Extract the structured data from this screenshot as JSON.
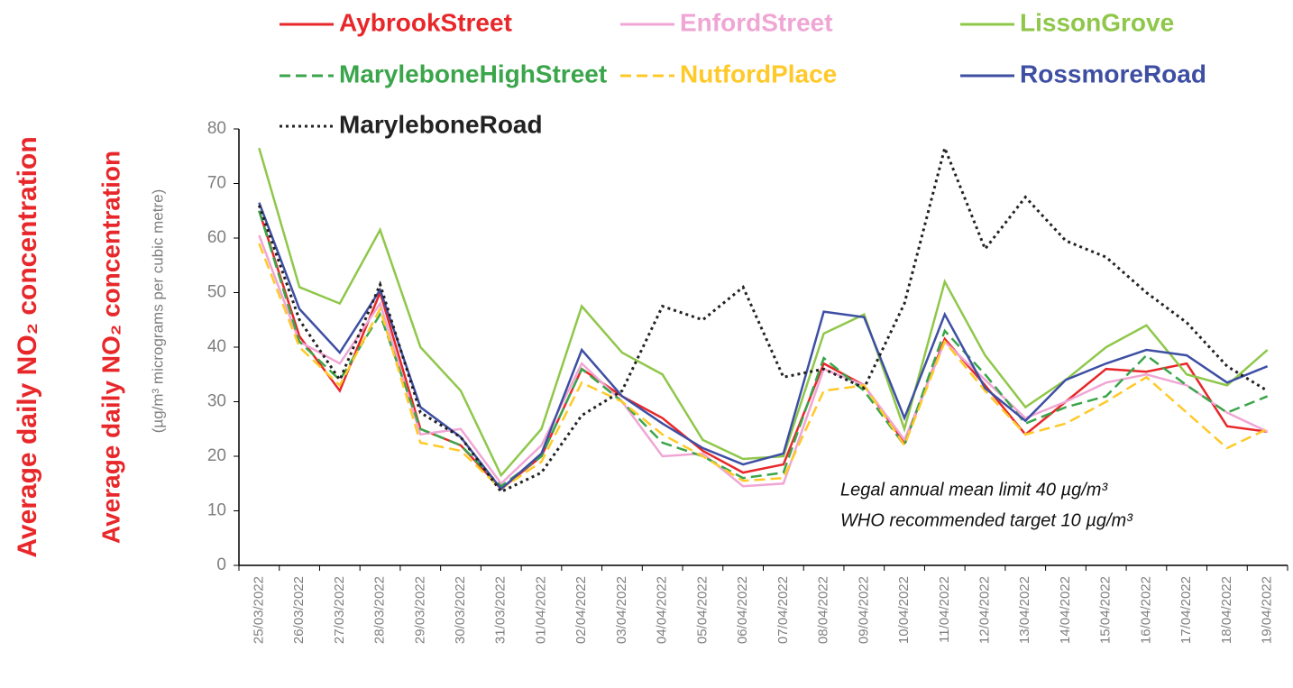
{
  "chart_data": {
    "type": "line",
    "y_label_outer": "Average daily NO₂ concentration",
    "y_label": "Average daily NO₂ concentration",
    "y_label_units": "(µg/m³ micrograms per cubic metre)",
    "annotations": [
      "Legal annual mean limit 40 µg/m³",
      "WHO recommended target 10 µg/m³"
    ],
    "categories": [
      "25/03/2022",
      "26/03/2022",
      "27/03/2022",
      "28/03/2022",
      "29/03/2022",
      "30/03/2022",
      "31/03/2022",
      "01/04/2022",
      "02/04/2022",
      "03/04/2022",
      "04/04/2022",
      "05/04/2022",
      "06/04/2022",
      "07/04/2022",
      "08/04/2022",
      "09/04/2022",
      "10/04/2022",
      "11/04/2022",
      "12/04/2022",
      "13/04/2022",
      "14/04/2022",
      "15/04/2022",
      "16/04/2022",
      "17/04/2022",
      "18/04/2022",
      "19/04/2022"
    ],
    "ylim": [
      0,
      80
    ],
    "yticks": [
      0,
      10,
      20,
      30,
      40,
      50,
      60,
      70,
      80
    ],
    "series": [
      {
        "name": "AybrookStreet",
        "color": "#e8272a",
        "style": "solid",
        "values": [
          65,
          42,
          32,
          50,
          25,
          22,
          14,
          20,
          36,
          31,
          27,
          21,
          17,
          18.5,
          37,
          33,
          22.5,
          41.5,
          33,
          24,
          30,
          36,
          35.5,
          37,
          25.5,
          24.5
        ]
      },
      {
        "name": "EnfordStreet",
        "color": "#f0a6d4",
        "style": "solid",
        "values": [
          60.5,
          41,
          37,
          48,
          24,
          25,
          15,
          22,
          37,
          30,
          20,
          20.5,
          14.5,
          15,
          36,
          33,
          23,
          41,
          34,
          27,
          30,
          33.5,
          35,
          33,
          28,
          24.5
        ]
      },
      {
        "name": "LissonGrove",
        "color": "#8fc74a",
        "style": "solid",
        "values": [
          76.5,
          51,
          48,
          61.5,
          40,
          32,
          16.5,
          25,
          47.5,
          39,
          35,
          23,
          19.5,
          20,
          42.5,
          46,
          25,
          52,
          38.5,
          29,
          34,
          40,
          44,
          35,
          33,
          39.5
        ]
      },
      {
        "name": "MaryleboneHighStreet",
        "color": "#3aa54a",
        "style": "dashed",
        "values": [
          65,
          41,
          34,
          46,
          25,
          22,
          14.5,
          20,
          36,
          30,
          22.5,
          20,
          16,
          17,
          38,
          32,
          22,
          43,
          35,
          26,
          29,
          31,
          38.5,
          33,
          28,
          31
        ]
      },
      {
        "name": "NutfordPlace",
        "color": "#ffc929",
        "style": "dashed",
        "values": [
          59,
          40,
          33,
          47,
          22.5,
          21,
          14,
          19,
          33.5,
          30,
          24,
          20,
          15.5,
          16,
          32,
          33,
          22,
          41,
          32,
          24,
          26,
          30,
          34.5,
          28,
          21.5,
          25
        ]
      },
      {
        "name": "RossmoreRoad",
        "color": "#3e4fa3",
        "style": "solid",
        "values": [
          66.5,
          47,
          39,
          50.5,
          29,
          23.5,
          14,
          20.5,
          39.5,
          31,
          26,
          21.5,
          18.5,
          20.5,
          46.5,
          45.5,
          27,
          46,
          32.5,
          26.5,
          34,
          37,
          39.5,
          38.5,
          33.5,
          36.5
        ]
      },
      {
        "name": "MaryleboneRoad",
        "color": "#222222",
        "style": "dotted",
        "values": [
          66,
          45,
          34,
          51.5,
          28,
          23.5,
          13.5,
          17,
          27.5,
          32,
          47.5,
          45,
          51,
          34.5,
          36,
          32.5,
          48,
          76.5,
          58,
          67.5,
          59.5,
          56.5,
          50,
          44.5,
          36.5,
          32
        ]
      }
    ]
  }
}
